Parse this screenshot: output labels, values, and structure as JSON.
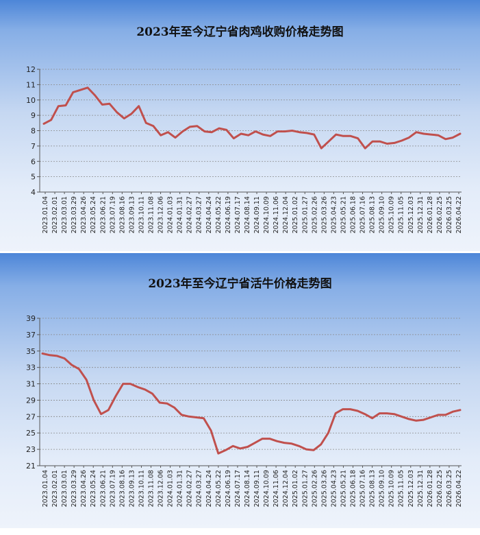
{
  "chart_data": [
    {
      "type": "line",
      "title": "2023年至今辽宁省肉鸡收购价格走势图",
      "xlabel": "",
      "ylabel": "",
      "ylim": [
        4,
        12
      ],
      "yticks": [
        4,
        5,
        6,
        7,
        8,
        9,
        10,
        11,
        12
      ],
      "grid": true,
      "line_color": "#c0504d",
      "x_tick_labels": [
        "2023.01.04",
        "2023.02.01",
        "2023.03.01",
        "2023.03.29",
        "2023.04.26",
        "2023.05.24",
        "2023.06.21",
        "2023.07.19",
        "2023.08.16",
        "2023.09.13",
        "2023.10.11",
        "2023.11.08",
        "2023.12.06",
        "2024.01.03",
        "2024.01.31",
        "2024.02.27",
        "2024.03.27",
        "2024.04.24",
        "2024.05.22",
        "2024.06.19",
        "2024.07.17",
        "2024.08.14",
        "2024.09.11",
        "2024.10.09",
        "2024.11.06",
        "2024.12.04",
        "2025.01.02",
        "2025.01.27",
        "2025.02.26",
        "2025.03.26",
        "2025.04.23",
        "2025.05.21",
        "2025.06.18",
        "2025.07.16",
        "2025.08.13",
        "2025.09.10",
        "2025.10.09",
        "2025.11.05",
        "2025.12.03",
        "2025.12.31",
        "2026.01.28",
        "2026.02.25",
        "2026.03.25",
        "2026.04.22"
      ],
      "values": [
        8.45,
        8.7,
        9.6,
        9.65,
        10.5,
        10.65,
        10.8,
        10.3,
        9.7,
        9.75,
        9.2,
        8.8,
        9.1,
        9.6,
        8.5,
        8.3,
        7.7,
        7.9,
        7.55,
        7.95,
        8.25,
        8.3,
        7.95,
        7.9,
        8.15,
        8.05,
        7.5,
        7.8,
        7.7,
        7.95,
        7.75,
        7.65,
        7.95,
        7.95,
        8.0,
        7.9,
        7.85,
        7.75,
        6.85,
        7.3,
        7.75,
        7.65,
        7.65,
        7.5,
        6.85,
        7.3,
        7.3,
        7.15,
        7.2,
        7.35,
        7.55,
        7.9,
        7.8,
        7.75,
        7.7,
        7.45,
        7.55,
        7.8
      ]
    },
    {
      "type": "line",
      "title": "2023年至今辽宁省活牛价格走势图",
      "xlabel": "",
      "ylabel": "",
      "ylim": [
        21,
        39
      ],
      "yticks": [
        21,
        23,
        25,
        27,
        29,
        31,
        33,
        35,
        37,
        39
      ],
      "grid": true,
      "line_color": "#c0504d",
      "x_tick_labels": [
        "2023.01.04",
        "2023.02.01",
        "2023.03.01",
        "2023.03.29",
        "2023.04.26",
        "2023.05.24",
        "2023.06.21",
        "2023.07.19",
        "2023.08.16",
        "2023.09.13",
        "2023.10.11",
        "2023.11.08",
        "2023.12.06",
        "2024.01.03",
        "2024.01.31",
        "2024.02.27",
        "2024.03.27",
        "2024.04.24",
        "2024.05.22",
        "2024.06.19",
        "2024.07.17",
        "2024.08.14",
        "2024.09.11",
        "2024.10.09",
        "2024.11.06",
        "2024.12.04",
        "2025.01.02",
        "2025.01.27",
        "2025.02.26",
        "2025.03.26",
        "2025.04.23",
        "2025.05.21",
        "2025.06.18",
        "2025.07.16",
        "2025.08.13",
        "2025.09.10",
        "2025.10.09",
        "2025.11.05",
        "2025.12.03",
        "2025.12.31",
        "2026.01.28",
        "2026.02.25",
        "2026.03.25",
        "2026.04.22"
      ],
      "values": [
        34.7,
        34.5,
        34.4,
        34.1,
        33.3,
        32.8,
        31.5,
        29.0,
        27.3,
        27.8,
        29.5,
        31.0,
        31.0,
        30.6,
        30.3,
        29.8,
        28.7,
        28.6,
        28.1,
        27.2,
        27.0,
        26.9,
        26.8,
        25.3,
        22.5,
        22.9,
        23.4,
        23.1,
        23.3,
        23.8,
        24.3,
        24.3,
        24.0,
        23.8,
        23.7,
        23.4,
        23.0,
        22.9,
        23.6,
        25.0,
        27.4,
        27.9,
        27.9,
        27.7,
        27.3,
        26.8,
        27.4,
        27.4,
        27.3,
        27.0,
        26.7,
        26.5,
        26.6,
        26.9,
        27.2,
        27.2,
        27.6,
        27.8
      ]
    }
  ]
}
